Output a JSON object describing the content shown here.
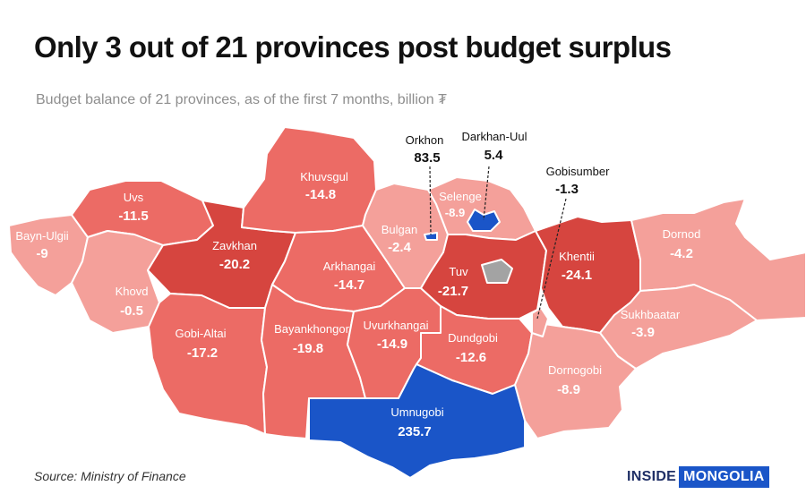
{
  "title": "Only 3 out of 21 provinces post budget surplus",
  "subtitle": "Budget balance of 21 provinces, as of the first 7 months, billion ₮",
  "source": "Source: Ministry of Finance",
  "logo": {
    "part1": "INSIDE",
    "part2": "MONGOLIA"
  },
  "colors": {
    "surplus": "#1a55c8",
    "deficit_high": "#d6453f",
    "deficit_mid": "#ec6b65",
    "deficit_low": "#f4a09a",
    "no_data": "#a3a3a3",
    "border": "#ffffff"
  },
  "provinces": [
    {
      "id": "bayn-ulgii",
      "name": "Bayn-Ulgii",
      "value": "-9"
    },
    {
      "id": "uvs",
      "name": "Uvs",
      "value": "-11.5"
    },
    {
      "id": "khovd",
      "name": "Khovd",
      "value": "-0.5"
    },
    {
      "id": "zavkhan",
      "name": "Zavkhan",
      "value": "-20.2"
    },
    {
      "id": "khuvsgul",
      "name": "Khuvsgul",
      "value": "-14.8"
    },
    {
      "id": "gobi-altai",
      "name": "Gobi-Altai",
      "value": "-17.2"
    },
    {
      "id": "arkhangai",
      "name": "Arkhangai",
      "value": "-14.7"
    },
    {
      "id": "bayankhongor",
      "name": "Bayankhongor",
      "value": "-19.8"
    },
    {
      "id": "bulgan",
      "name": "Bulgan",
      "value": "-2.4"
    },
    {
      "id": "selenge",
      "name": "Selenge",
      "value": "-8.9"
    },
    {
      "id": "uvurkhangai",
      "name": "Uvurkhangai",
      "value": "-14.9"
    },
    {
      "id": "tuv",
      "name": "Tuv",
      "value": "-21.7"
    },
    {
      "id": "khentii",
      "name": "Khentii",
      "value": "-24.1"
    },
    {
      "id": "dornod",
      "name": "Dornod",
      "value": "-4.2"
    },
    {
      "id": "sukhbaatar",
      "name": "Sukhbaatar",
      "value": "-3.9"
    },
    {
      "id": "dundgobi",
      "name": "Dundgobi",
      "value": "-12.6"
    },
    {
      "id": "dornogobi",
      "name": "Dornogobi",
      "value": "-8.9"
    },
    {
      "id": "umnugobi",
      "name": "Umnugobi",
      "value": "235.7"
    },
    {
      "id": "orkhon",
      "name": "Orkhon",
      "value": "83.5"
    },
    {
      "id": "darkhan-uul",
      "name": "Darkhan-Uul",
      "value": "5.4"
    },
    {
      "id": "gobisumber",
      "name": "Gobisumber",
      "value": "-1.3"
    }
  ]
}
